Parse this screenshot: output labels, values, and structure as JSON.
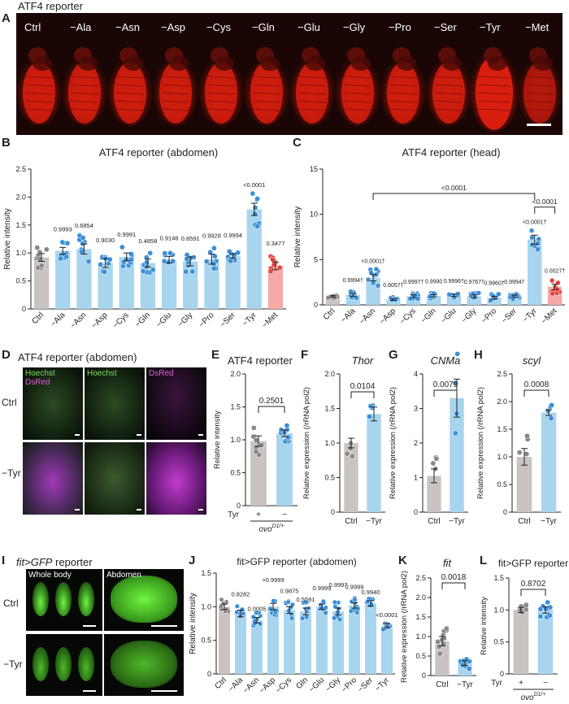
{
  "panel_letters": {
    "a": "A",
    "b": "B",
    "c": "C",
    "d": "D",
    "e": "E",
    "f": "F",
    "g": "G",
    "h": "H",
    "i": "I",
    "j": "J",
    "k": "K",
    "l": "L"
  },
  "panelA": {
    "title": "ATF4 reporter",
    "labels": [
      "Ctrl",
      "−Ala",
      "−Asn",
      "−Asp",
      "−Cys",
      "−Gln",
      "−Glu",
      "−Gly",
      "−Pro",
      "−Ser",
      "−Tyr",
      "−Met"
    ]
  },
  "panelD": {
    "title": "ATF4 reporter (abdomen)",
    "col_labels": [
      "Hoechst",
      "Hoechst",
      "DsRed"
    ],
    "merge_label": "DsRed",
    "rows": [
      "Ctrl",
      "−Tyr"
    ]
  },
  "panelI": {
    "title_italic": "fit>GFP",
    "title_rest": " reporter",
    "col_labels": [
      "Whole body",
      "Abdomen"
    ],
    "rows": [
      "Ctrl",
      "−Tyr"
    ]
  },
  "colors": {
    "ctrl": "#c9c4c2",
    "aa": "#a8d5ee",
    "met": "#f4a9a6",
    "dot_ctrl": "#8a8785",
    "dot_aa": "#3b8fd6",
    "dot_met": "#e8413c"
  },
  "chart_data": [
    {
      "id": "B",
      "type": "bar",
      "title": "ATF4 reporter (abdomen)",
      "ylabel": "Relative intensity",
      "ylim": [
        0,
        2.5
      ],
      "yticks": [
        "0",
        "0.5",
        "1.0",
        "1.5",
        "2.0",
        "2.5"
      ],
      "categories": [
        "Ctrl",
        "−Ala",
        "−Asn",
        "−Asp",
        "−Cys",
        "−Gln",
        "−Glu",
        "−Gly",
        "−Pro",
        "−Ser",
        "−Tyr",
        "−Met"
      ],
      "values": [
        0.92,
        1.04,
        1.07,
        0.82,
        0.93,
        0.82,
        0.88,
        0.85,
        0.89,
        0.95,
        1.78,
        0.77
      ],
      "errors": [
        0.07,
        0.06,
        0.09,
        0.08,
        0.07,
        0.07,
        0.06,
        0.08,
        0.09,
        0.04,
        0.11,
        0.07
      ],
      "pvalues": [
        "",
        "0.9993",
        "0.6854",
        "0.9030",
        "0.9991",
        "0.4858",
        "0.9146",
        "0.8591",
        "0.9928",
        "0.9994",
        "<0.0001",
        "0.3477"
      ]
    },
    {
      "id": "C",
      "type": "bar",
      "title": "ATF4 reporter (head)",
      "ylabel": "Relative intensity",
      "ylim": [
        0,
        15
      ],
      "yticks": [
        "0",
        "5",
        "10",
        "15"
      ],
      "categories": [
        "Ctrl",
        "−Ala",
        "−Asn",
        "−Asp",
        "−Cys",
        "−Gln",
        "−Glu",
        "−Gly",
        "−Pro",
        "−Ser",
        "−Tyr",
        "−Met"
      ],
      "values": [
        0.95,
        1.1,
        3.0,
        0.6,
        0.95,
        1.0,
        1.05,
        0.95,
        0.8,
        0.95,
        7.2,
        2.0
      ],
      "errors": [
        0.1,
        0.15,
        0.35,
        0.1,
        0.15,
        0.12,
        0.12,
        0.15,
        0.15,
        0.12,
        0.5,
        0.3
      ],
      "pvalues": [
        "",
        "0.9994†",
        "<0.0001†",
        "0.6057†",
        "0.9997†",
        "0.9990",
        "0.9996†",
        "0.9767†",
        "0.9960†",
        "0.9994†",
        "<0.0001†",
        "0.0027†"
      ],
      "bracket_pvalues": [
        "<0.0001",
        "<0.0001"
      ]
    },
    {
      "id": "E",
      "type": "bar",
      "title": "ATF4 reporter",
      "ylabel": "Relative intensity",
      "ylim": [
        0,
        2.0
      ],
      "yticks": [
        "0",
        "0.5",
        "1.0",
        "1.5",
        "2.0"
      ],
      "categories": [
        "+",
        "−"
      ],
      "category_prefix": "Tyr",
      "genotype": "ovo",
      "genotype_sup": "D1/+",
      "values": [
        0.98,
        1.1
      ],
      "errors": [
        0.08,
        0.05
      ],
      "pvalue": "0.2501"
    },
    {
      "id": "F",
      "type": "bar",
      "title": "Thor",
      "ylabel": "Relative expression (/rRNA pol2)",
      "ylim": [
        0,
        2.0
      ],
      "yticks": [
        "0",
        "0.5",
        "1.0",
        "1.5",
        "2.0"
      ],
      "categories": [
        "Ctrl",
        "−Tyr"
      ],
      "values": [
        1.0,
        1.42
      ],
      "errors": [
        0.07,
        0.1
      ],
      "pvalue": "0.0104"
    },
    {
      "id": "G",
      "type": "bar",
      "title": "CNMa",
      "ylabel": "Relative expression (/rRNA pol2)",
      "ylim": [
        0,
        4
      ],
      "yticks": [
        "0",
        "1",
        "2",
        "3",
        "4"
      ],
      "categories": [
        "Ctrl",
        "−Tyr"
      ],
      "values": [
        1.05,
        3.3
      ],
      "errors": [
        0.2,
        0.55
      ],
      "pvalue": "0.0079"
    },
    {
      "id": "H",
      "type": "bar",
      "title": "scyl",
      "ylabel": "Relative expression (/rRNA pol2)",
      "ylim": [
        0,
        2.5
      ],
      "yticks": [
        "0",
        "0.5",
        "1.0",
        "1.5",
        "2.0",
        "2.5"
      ],
      "categories": [
        "Ctrl",
        "−Tyr"
      ],
      "values": [
        1.0,
        1.8
      ],
      "errors": [
        0.15,
        0.05
      ],
      "pvalue": "0.0008"
    },
    {
      "id": "J",
      "type": "bar",
      "title": "fit>GFP reporter (abdomen)",
      "ylabel": "Relative intensity",
      "ylim": [
        0,
        1.5
      ],
      "yticks": [
        "0",
        "0.5",
        "1.0",
        "1.5"
      ],
      "categories": [
        "Ctrl",
        "−Ala",
        "−Asn",
        "−Asp",
        "−Cys",
        "Gln",
        "−Glu",
        "−Gly",
        "−Pro",
        "−Ser",
        "−Tyr"
      ],
      "values": [
        1.0,
        0.9,
        0.8,
        1.0,
        0.95,
        0.93,
        1.0,
        0.93,
        1.02,
        1.05,
        0.72
      ],
      "errors": [
        0.04,
        0.05,
        0.04,
        0.05,
        0.05,
        0.05,
        0.04,
        0.05,
        0.04,
        0.04,
        0.03
      ],
      "pvalues": [
        "",
        "0.8282",
        "0.0005",
        ">0.9999",
        "0.9875",
        "0.5591",
        "0.9999",
        "0.9997",
        "0.9999",
        "0.9940",
        "<0.0001"
      ],
      "pvalue_levels": [
        0,
        1,
        0,
        2,
        1,
        0,
        1,
        2,
        1,
        0,
        0
      ]
    },
    {
      "id": "K",
      "type": "bar",
      "title": "fit",
      "ylabel": "Relative expression (/rRNA pol2)",
      "ylim": [
        0,
        2.5
      ],
      "yticks": [
        "0",
        "0.5",
        "1.0",
        "1.5",
        "2.0",
        "2.5"
      ],
      "categories": [
        "Ctrl",
        "−Tyr"
      ],
      "values": [
        0.88,
        0.32
      ],
      "errors": [
        0.12,
        0.06
      ],
      "pvalue": "0.0018"
    },
    {
      "id": "L",
      "type": "bar",
      "title": "fit>GFP reporter",
      "ylabel": "Relative intensity",
      "ylim": [
        0,
        1.5
      ],
      "yticks": [
        "0",
        "0.5",
        "1.0",
        "1.5"
      ],
      "categories": [
        "+",
        "−"
      ],
      "category_prefix": "Tyr",
      "genotype": "ovo",
      "genotype_sup": "D1/+",
      "values": [
        1.0,
        1.0
      ],
      "errors": [
        0.04,
        0.05
      ],
      "pvalue": "0.8702"
    }
  ]
}
